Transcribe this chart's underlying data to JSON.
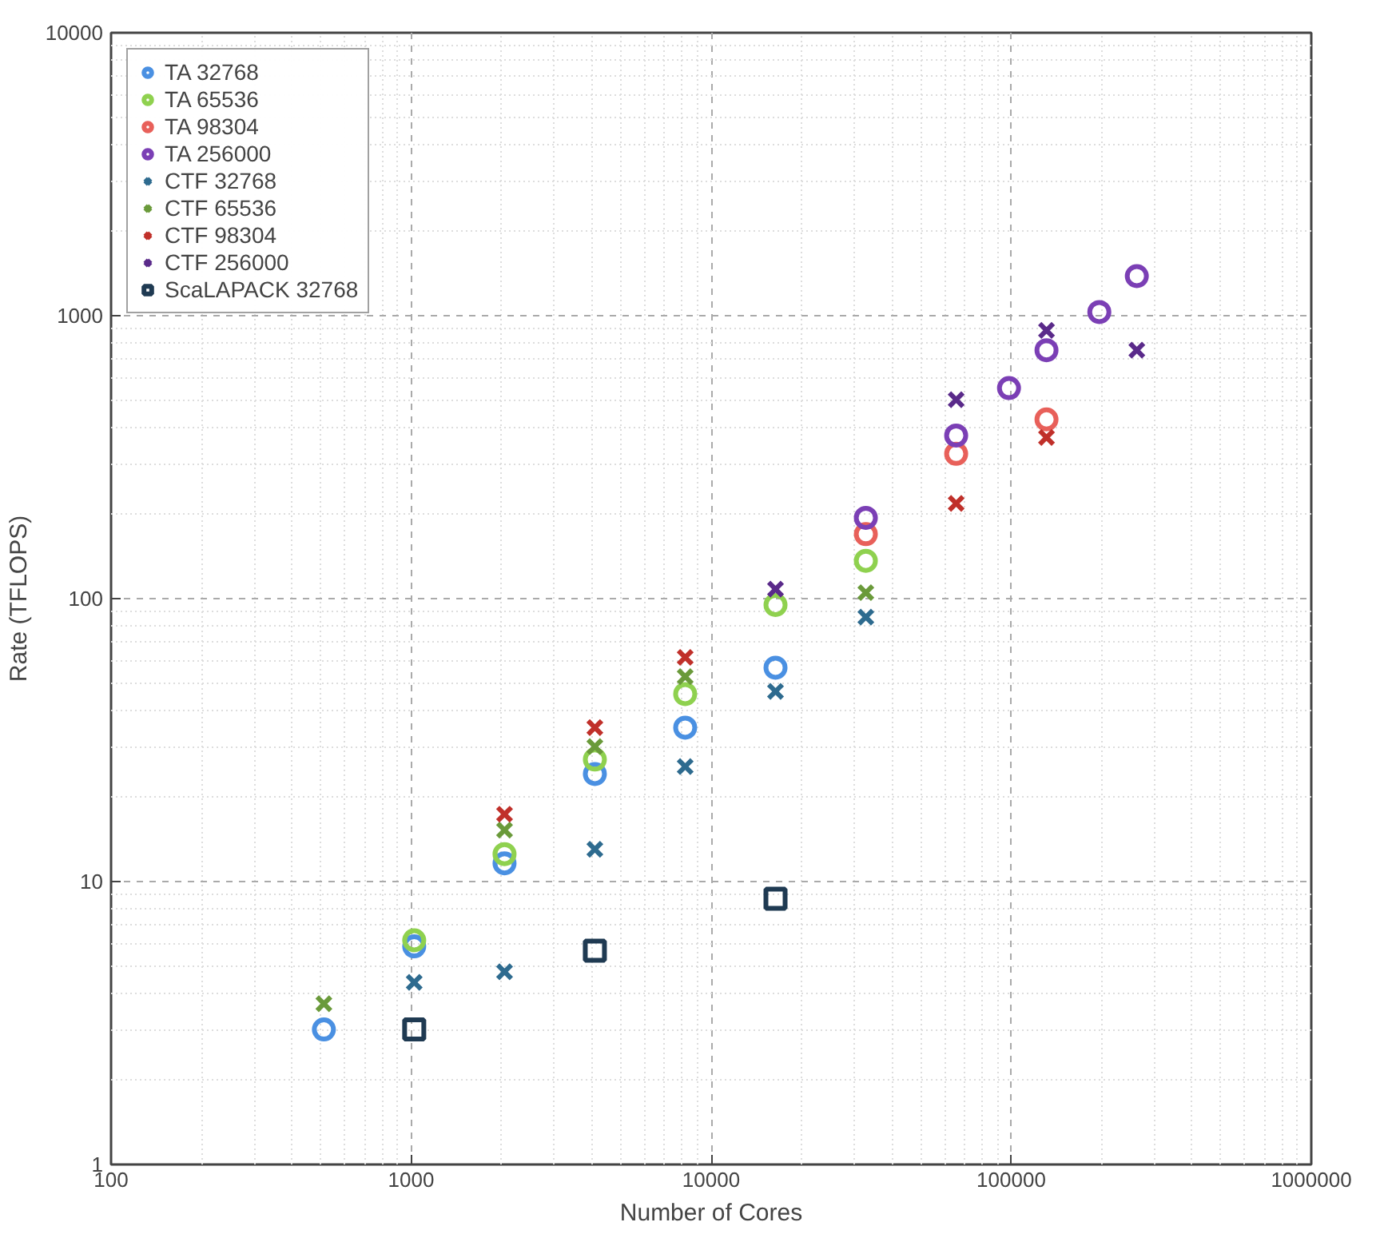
{
  "chart_data": {
    "type": "scatter",
    "xlabel": "Number of Cores",
    "ylabel": "Rate (TFLOPS)",
    "log": "xy",
    "grid": true,
    "legend": "top left",
    "xlim": [
      100,
      1000000
    ],
    "ylim": [
      1,
      10000
    ],
    "xticks": [
      100,
      1000,
      10000,
      100000,
      1000000
    ],
    "yticks": [
      1,
      10,
      100,
      1000,
      10000
    ],
    "series": [
      {
        "name": "TA 32768",
        "color": "#4a90e2",
        "marker": "circle",
        "x": [
          512,
          1024,
          2048,
          4096,
          8192,
          16384
        ],
        "values": [
          3.0,
          5.9,
          11.6,
          24,
          35,
          57
        ]
      },
      {
        "name": "TA 65536",
        "color": "#8fd14f",
        "marker": "circle",
        "x": [
          1024,
          2048,
          4096,
          8192,
          16384,
          32768
        ],
        "values": [
          6.2,
          12.5,
          27,
          46,
          95,
          136
        ]
      },
      {
        "name": "TA 98304",
        "color": "#e8605a",
        "marker": "circle",
        "x": [
          32768,
          65536,
          131072
        ],
        "values": [
          169,
          325,
          430
        ]
      },
      {
        "name": "TA 256000",
        "color": "#7b3fb5",
        "marker": "circle",
        "x": [
          32768,
          65536,
          98304,
          131072,
          196608,
          262144
        ],
        "values": [
          193,
          377,
          555,
          755,
          1030,
          1380
        ]
      },
      {
        "name": "CTF 32768",
        "color": "#2e6b8f",
        "marker": "cross",
        "x": [
          1024,
          2048,
          4096,
          8192,
          16384,
          32768
        ],
        "values": [
          4.4,
          4.8,
          13,
          25.5,
          47,
          86
        ]
      },
      {
        "name": "CTF 65536",
        "color": "#6a9a3a",
        "marker": "cross",
        "x": [
          512,
          2048,
          4096,
          8192,
          32768
        ],
        "values": [
          3.7,
          15.2,
          30,
          53,
          105
        ]
      },
      {
        "name": "CTF 98304",
        "color": "#c0302a",
        "marker": "cross",
        "x": [
          2048,
          4096,
          8192,
          65536,
          131072
        ],
        "values": [
          17.3,
          35,
          62,
          217,
          371
        ]
      },
      {
        "name": "CTF 256000",
        "color": "#5a2a8a",
        "marker": "cross",
        "x": [
          16384,
          65536,
          131072,
          262144
        ],
        "values": [
          108,
          505,
          887,
          755
        ]
      },
      {
        "name": "ScaLAPACK 32768",
        "color": "#1f3a52",
        "marker": "square",
        "x": [
          1024,
          4096,
          16384
        ],
        "values": [
          3.0,
          5.7,
          8.7
        ]
      }
    ]
  }
}
